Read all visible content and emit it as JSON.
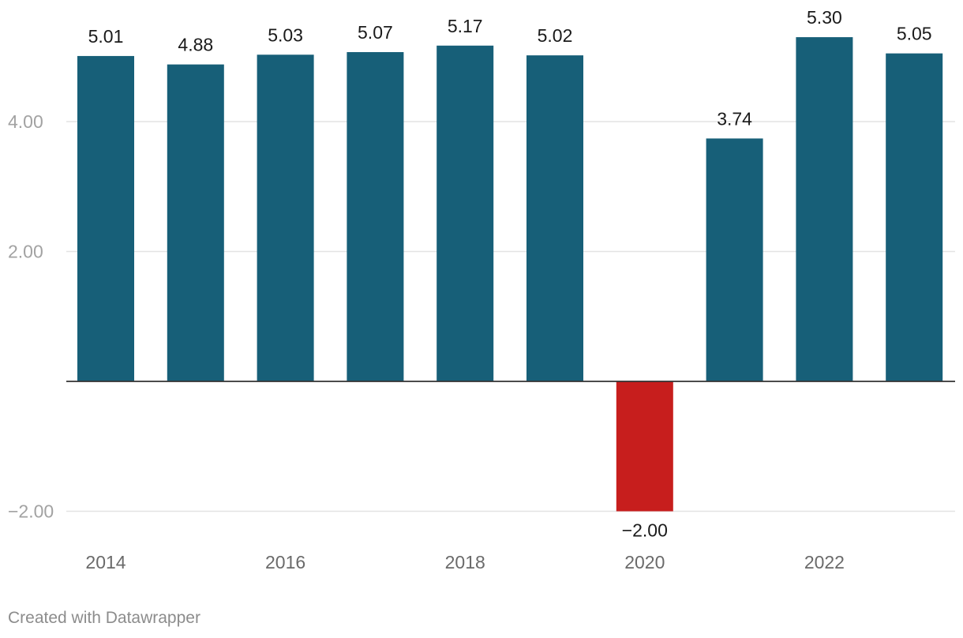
{
  "chart_data": {
    "type": "bar",
    "categories": [
      "2014",
      "2015",
      "2016",
      "2017",
      "2018",
      "2019",
      "2020",
      "2021",
      "2022",
      "2023"
    ],
    "values": [
      5.01,
      4.88,
      5.03,
      5.07,
      5.17,
      5.02,
      -2.0,
      3.74,
      5.3,
      5.05
    ],
    "value_labels": [
      "5.01",
      "4.88",
      "5.03",
      "5.07",
      "5.17",
      "5.02",
      "−2.00",
      "3.74",
      "5.30",
      "5.05"
    ],
    "x_tick_labels": [
      "2014",
      "2016",
      "2018",
      "2020",
      "2022"
    ],
    "y_ticks": [
      {
        "value": 4,
        "label": "4.00"
      },
      {
        "value": 2,
        "label": "2.00"
      },
      {
        "value": -2,
        "label": "−2.00"
      }
    ],
    "ylim": [
      -2,
      6
    ],
    "title": "",
    "xlabel": "",
    "ylabel": "",
    "grid": true,
    "colors": {
      "positive": "#175f78",
      "negative": "#c71e1d",
      "grid": "#e3e3e3",
      "baseline": "#333333"
    }
  },
  "footer": {
    "credit": "Created with Datawrapper"
  }
}
